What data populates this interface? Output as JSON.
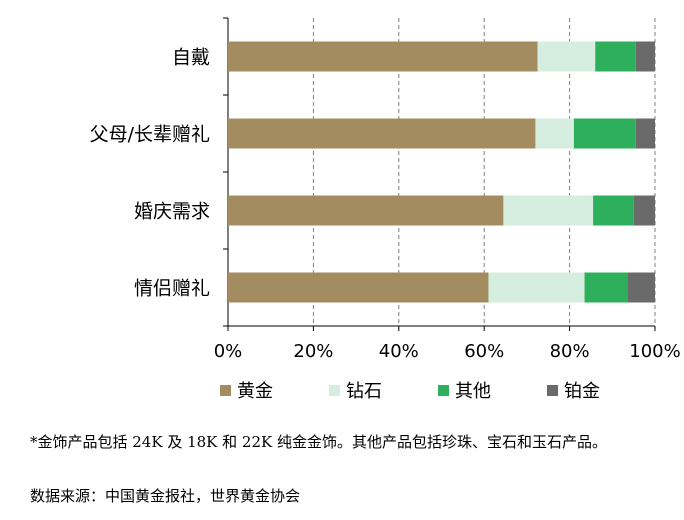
{
  "chart_data": {
    "type": "bar",
    "orientation": "horizontal",
    "stacked": true,
    "categories": [
      "自戴",
      "父母/长辈赠礼",
      "婚庆需求",
      "情侣赠礼"
    ],
    "series": [
      {
        "name": "黄金",
        "color": "#A38C5F",
        "values": [
          72.5,
          72,
          64.5,
          61
        ]
      },
      {
        "name": "钻石",
        "color": "#D5EEDF",
        "values": [
          13.5,
          9,
          21,
          22.5
        ]
      },
      {
        "name": "其他",
        "color": "#2EAF5B",
        "values": [
          9.5,
          14.5,
          9.5,
          10
        ]
      },
      {
        "name": "铂金",
        "color": "#6A6A6A",
        "values": [
          4.5,
          4.5,
          5,
          6.5
        ]
      }
    ],
    "xlim": [
      0,
      100
    ],
    "x_ticks": [
      "0%",
      "20%",
      "40%",
      "60%",
      "80%",
      "100%"
    ],
    "grid": true,
    "legend_position": "bottom"
  },
  "footnote": "*金饰产品包括 24K 及 18K 和 22K 纯金金饰。其他产品包括珍珠、宝石和玉石产品。",
  "source": "数据来源：中国黄金报社，世界黄金协会"
}
